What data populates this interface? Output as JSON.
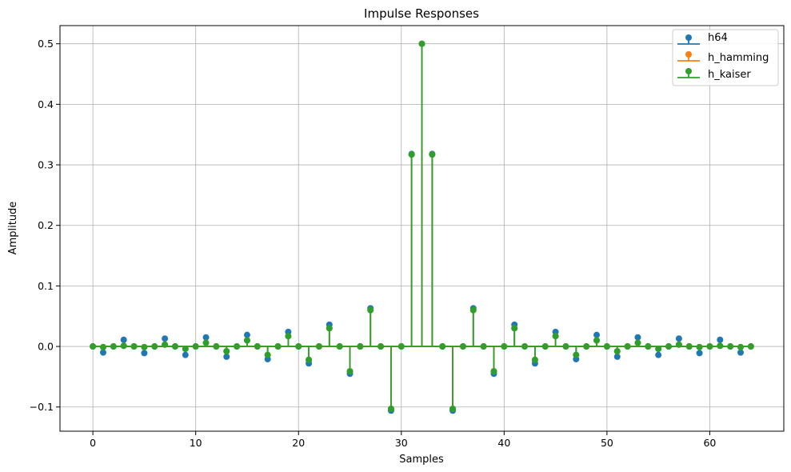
{
  "chart_data": {
    "type": "stem",
    "title": "Impulse Responses",
    "xlabel": "Samples",
    "ylabel": "Amplitude",
    "xlim": [
      -3.2,
      67.2
    ],
    "ylim": [
      -0.14,
      0.53
    ],
    "xticks": [
      0,
      10,
      20,
      30,
      40,
      50,
      60
    ],
    "yticks": [
      -0.1,
      0.0,
      0.1,
      0.2,
      0.3,
      0.4,
      0.5
    ],
    "ytick_labels": [
      "−0.1",
      "0.0",
      "0.1",
      "0.2",
      "0.3",
      "0.4",
      "0.5"
    ],
    "grid": true,
    "legend_position": "top-right",
    "x": [
      0,
      1,
      2,
      3,
      4,
      5,
      6,
      7,
      8,
      9,
      10,
      11,
      12,
      13,
      14,
      15,
      16,
      17,
      18,
      19,
      20,
      21,
      22,
      23,
      24,
      25,
      26,
      27,
      28,
      29,
      30,
      31,
      32,
      33,
      34,
      35,
      36,
      37,
      38,
      39,
      40,
      41,
      42,
      43,
      44,
      45,
      46,
      47,
      48,
      49,
      50,
      51,
      52,
      53,
      54,
      55,
      56,
      57,
      58,
      59,
      60,
      61,
      62,
      63,
      64
    ],
    "series": [
      {
        "name": "h64",
        "color": "#1f77b4",
        "values": [
          0,
          -0.01,
          0,
          0.011,
          0,
          -0.011,
          0,
          0.013,
          0,
          -0.014,
          0,
          0.015,
          0,
          -0.017,
          0,
          0.019,
          0,
          -0.021,
          0,
          0.024,
          0,
          -0.028,
          0,
          0.036,
          0,
          -0.045,
          0,
          0.063,
          0,
          -0.106,
          0,
          0.318,
          0.5,
          0.318,
          0,
          -0.106,
          0,
          0.063,
          0,
          -0.045,
          0,
          0.036,
          0,
          -0.028,
          0,
          0.024,
          0,
          -0.021,
          0,
          0.019,
          0,
          -0.017,
          0,
          0.015,
          0,
          -0.014,
          0,
          0.013,
          0,
          -0.011,
          0,
          0.011,
          0,
          -0.01,
          0
        ]
      },
      {
        "name": "h_hamming",
        "color": "#ff7f0e",
        "values": [
          0,
          -0.001,
          0,
          0.001,
          0,
          -0.001,
          0,
          0.003,
          0,
          -0.004,
          0,
          0.006,
          0,
          -0.008,
          0,
          0.01,
          0,
          -0.014,
          0,
          0.017,
          0,
          -0.022,
          0,
          0.03,
          0,
          -0.041,
          0,
          0.06,
          0,
          -0.103,
          0,
          0.317,
          0.5,
          0.317,
          0,
          -0.103,
          0,
          0.06,
          0,
          -0.041,
          0,
          0.03,
          0,
          -0.022,
          0,
          0.017,
          0,
          -0.014,
          0,
          0.01,
          0,
          -0.008,
          0,
          0.006,
          0,
          -0.004,
          0,
          0.003,
          0,
          -0.001,
          0,
          0.001,
          0,
          -0.001,
          0
        ]
      },
      {
        "name": "h_kaiser",
        "color": "#2ca02c",
        "values": [
          0,
          -0.001,
          0,
          0.001,
          0,
          -0.001,
          0,
          0.003,
          0,
          -0.004,
          0,
          0.006,
          0,
          -0.008,
          0,
          0.01,
          0,
          -0.014,
          0,
          0.017,
          0,
          -0.022,
          0,
          0.03,
          0,
          -0.041,
          0,
          0.06,
          0,
          -0.103,
          0,
          0.317,
          0.5,
          0.317,
          0,
          -0.103,
          0,
          0.06,
          0,
          -0.041,
          0,
          0.03,
          0,
          -0.022,
          0,
          0.017,
          0,
          -0.014,
          0,
          0.01,
          0,
          -0.008,
          0,
          0.006,
          0,
          -0.004,
          0,
          0.003,
          0,
          -0.001,
          0,
          0.001,
          0,
          -0.001,
          0
        ]
      }
    ]
  }
}
